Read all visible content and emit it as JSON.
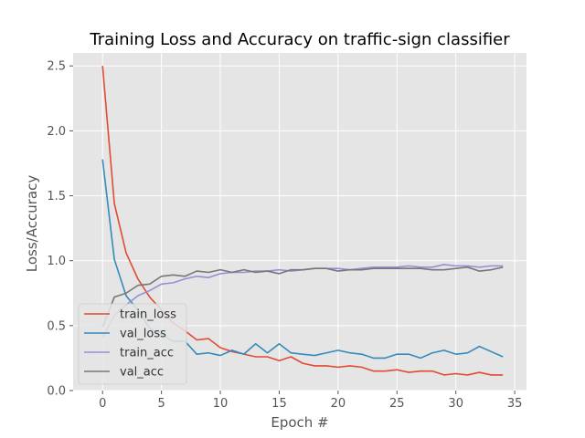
{
  "chart_data": {
    "type": "line",
    "title": "Training Loss and Accuracy on traffic-sign classifier",
    "xlabel": "Epoch #",
    "ylabel": "Loss/Accuracy",
    "xlim": [
      -2.5,
      36
    ],
    "ylim": [
      0,
      2.6
    ],
    "xticks": [
      0,
      5,
      10,
      15,
      20,
      25,
      30,
      35
    ],
    "yticks": [
      0.0,
      0.5,
      1.0,
      1.5,
      2.0,
      2.5
    ],
    "xtick_labels": [
      "0",
      "5",
      "10",
      "15",
      "20",
      "25",
      "30",
      "35"
    ],
    "ytick_labels": [
      "0.0",
      "0.5",
      "1.0",
      "1.5",
      "2.0",
      "2.5"
    ],
    "grid": true,
    "legend_position": "lower-left",
    "x": [
      0,
      1,
      2,
      3,
      4,
      5,
      6,
      7,
      8,
      9,
      10,
      11,
      12,
      13,
      14,
      15,
      16,
      17,
      18,
      19,
      20,
      21,
      22,
      23,
      24,
      25,
      26,
      27,
      28,
      29,
      30,
      31,
      32,
      33,
      34
    ],
    "series": [
      {
        "name": "train_loss",
        "color": "#E24A33",
        "values": [
          2.5,
          1.44,
          1.06,
          0.86,
          0.72,
          0.62,
          0.52,
          0.46,
          0.39,
          0.4,
          0.33,
          0.3,
          0.28,
          0.26,
          0.26,
          0.23,
          0.26,
          0.21,
          0.19,
          0.19,
          0.18,
          0.19,
          0.18,
          0.15,
          0.15,
          0.16,
          0.14,
          0.15,
          0.15,
          0.12,
          0.13,
          0.12,
          0.14,
          0.12,
          0.12
        ]
      },
      {
        "name": "val_loss",
        "color": "#348ABD",
        "values": [
          1.78,
          1.01,
          0.73,
          0.62,
          0.48,
          0.43,
          0.38,
          0.38,
          0.28,
          0.29,
          0.27,
          0.31,
          0.28,
          0.36,
          0.29,
          0.36,
          0.29,
          0.28,
          0.27,
          0.29,
          0.31,
          0.29,
          0.28,
          0.25,
          0.25,
          0.28,
          0.28,
          0.25,
          0.29,
          0.31,
          0.28,
          0.29,
          0.34,
          0.3,
          0.26
        ]
      },
      {
        "name": "train_acc",
        "color": "#988ED5",
        "values": [
          0.41,
          0.58,
          0.66,
          0.73,
          0.77,
          0.82,
          0.83,
          0.86,
          0.88,
          0.87,
          0.9,
          0.91,
          0.91,
          0.92,
          0.92,
          0.93,
          0.92,
          0.93,
          0.94,
          0.94,
          0.94,
          0.93,
          0.94,
          0.95,
          0.95,
          0.95,
          0.96,
          0.95,
          0.95,
          0.97,
          0.96,
          0.96,
          0.95,
          0.96,
          0.96
        ]
      },
      {
        "name": "val_acc",
        "color": "#777777",
        "values": [
          0.49,
          0.72,
          0.75,
          0.81,
          0.82,
          0.88,
          0.89,
          0.88,
          0.92,
          0.91,
          0.93,
          0.91,
          0.93,
          0.91,
          0.92,
          0.9,
          0.93,
          0.93,
          0.94,
          0.94,
          0.92,
          0.93,
          0.93,
          0.94,
          0.94,
          0.94,
          0.94,
          0.94,
          0.93,
          0.93,
          0.94,
          0.95,
          0.92,
          0.93,
          0.95
        ]
      }
    ]
  }
}
